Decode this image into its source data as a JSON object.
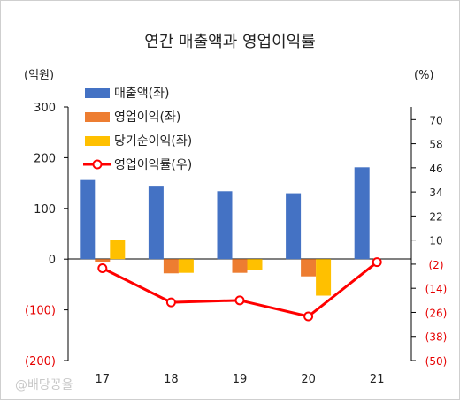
{
  "chart_data": {
    "type": "bar+line",
    "title": "연간 매출액과 영업이익률",
    "left_unit": "(억원)",
    "right_unit": "(%)",
    "categories": [
      "17",
      "18",
      "19",
      "20",
      "21"
    ],
    "left_axis": {
      "min": -200,
      "max": 300,
      "ticks": [
        300,
        200,
        100,
        0,
        -100,
        -200
      ],
      "tick_labels": [
        "300",
        "200",
        "100",
        "0",
        "(100)",
        "(200)"
      ],
      "negative_color": "#e60000"
    },
    "right_axis": {
      "min": -50,
      "max": 76.3,
      "ticks": [
        70,
        58,
        46,
        34,
        22,
        10,
        -2,
        -14,
        -26,
        -38,
        -50
      ],
      "tick_labels": [
        "70",
        "58",
        "46",
        "34",
        "22",
        "10",
        "(2)",
        "(14)",
        "(26)",
        "(38)",
        "(50)"
      ],
      "negative_color": "#e60000"
    },
    "series": [
      {
        "name": "매출액(좌)",
        "kind": "bar",
        "axis": "left",
        "color": "#4472c4",
        "values": [
          156,
          143,
          134,
          130,
          181
        ]
      },
      {
        "name": "영업이익(좌)",
        "kind": "bar",
        "axis": "left",
        "color": "#ed7d31",
        "values": [
          -6,
          -28,
          -27,
          -34,
          null
        ]
      },
      {
        "name": "당기순이익(좌)",
        "kind": "bar",
        "axis": "left",
        "color": "#ffc000",
        "values": [
          37,
          -27,
          -21,
          -72,
          null
        ]
      },
      {
        "name": "영업이익률(우)",
        "kind": "line",
        "axis": "right",
        "color": "#ff0000",
        "values": [
          -4,
          -21,
          -20,
          -28,
          -1
        ]
      }
    ],
    "legend_position": "top-left",
    "grid": false
  },
  "watermark": "@배당꽁율"
}
